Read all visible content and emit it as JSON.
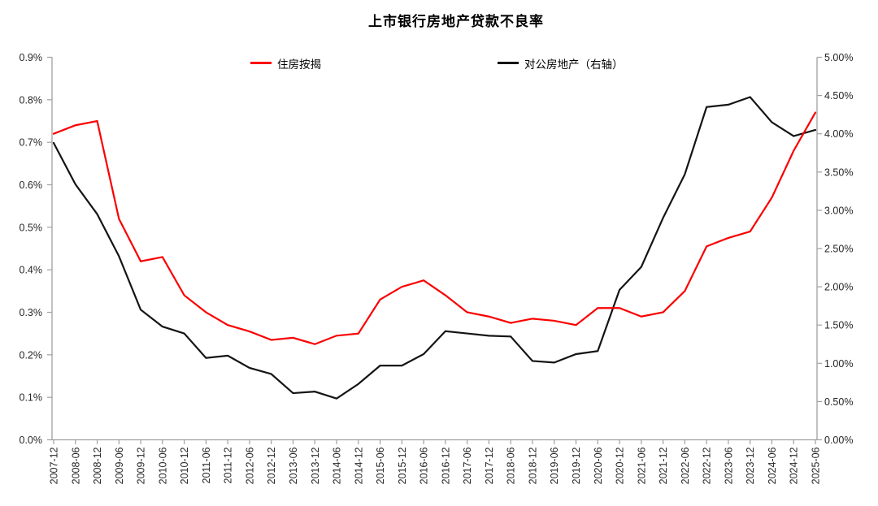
{
  "title": "上市银行房地产贷款不良率",
  "colors": {
    "axis": "#a0a0a0",
    "text": "#262626",
    "title": "#1a1a1a"
  },
  "chart_data": {
    "type": "line",
    "title": "上市银行房地产贷款不良率",
    "grid": false,
    "legend_position": "top",
    "categories": [
      "2007-12",
      "2008-06",
      "2008-12",
      "2009-06",
      "2009-12",
      "2010-06",
      "2010-12",
      "2011-06",
      "2011-12",
      "2012-06",
      "2012-12",
      "2013-06",
      "2013-12",
      "2014-06",
      "2014-12",
      "2015-06",
      "2015-12",
      "2016-06",
      "2016-12",
      "2017-06",
      "2017-12",
      "2018-06",
      "2018-12",
      "2019-06",
      "2019-12",
      "2020-06",
      "2020-12",
      "2021-06",
      "2021-12",
      "2022-06",
      "2022-12",
      "2023-06",
      "2023-12",
      "2024-06",
      "2024-12",
      "2025-06"
    ],
    "series": [
      {
        "name": "住房按揭",
        "axis": "left",
        "color": "#fa0000",
        "values": [
          0.72,
          0.74,
          0.75,
          0.52,
          0.42,
          0.43,
          0.34,
          0.3,
          0.27,
          0.255,
          0.235,
          0.24,
          0.225,
          0.245,
          0.25,
          0.33,
          0.36,
          0.375,
          0.34,
          0.3,
          0.29,
          0.275,
          0.285,
          0.28,
          0.27,
          0.31,
          0.31,
          0.29,
          0.3,
          0.35,
          0.455,
          0.475,
          0.49,
          0.57,
          0.68,
          0.77
        ]
      },
      {
        "name": "对公房地产（右轴）",
        "axis": "right",
        "color": "#141414",
        "values": [
          3.88,
          3.34,
          2.95,
          2.4,
          1.7,
          1.48,
          1.39,
          1.07,
          1.1,
          0.94,
          0.86,
          0.61,
          0.63,
          0.54,
          0.73,
          0.97,
          0.97,
          1.12,
          1.42,
          1.39,
          1.36,
          1.35,
          1.03,
          1.01,
          1.12,
          1.16,
          1.96,
          2.26,
          2.9,
          3.47,
          4.35,
          4.38,
          4.48,
          4.15,
          3.97,
          4.05
        ]
      }
    ],
    "left_axis": {
      "min": 0,
      "max": 0.9,
      "step": 0.1,
      "tick_labels": [
        "0.0%",
        "0.1%",
        "0.2%",
        "0.3%",
        "0.4%",
        "0.5%",
        "0.6%",
        "0.7%",
        "0.8%",
        "0.9%"
      ]
    },
    "right_axis": {
      "min": 0,
      "max": 5.0,
      "step": 0.5,
      "tick_labels": [
        "0.00%",
        "0.50%",
        "1.00%",
        "1.50%",
        "2.00%",
        "2.50%",
        "3.00%",
        "3.50%",
        "4.00%",
        "4.50%",
        "5.00%"
      ]
    }
  }
}
